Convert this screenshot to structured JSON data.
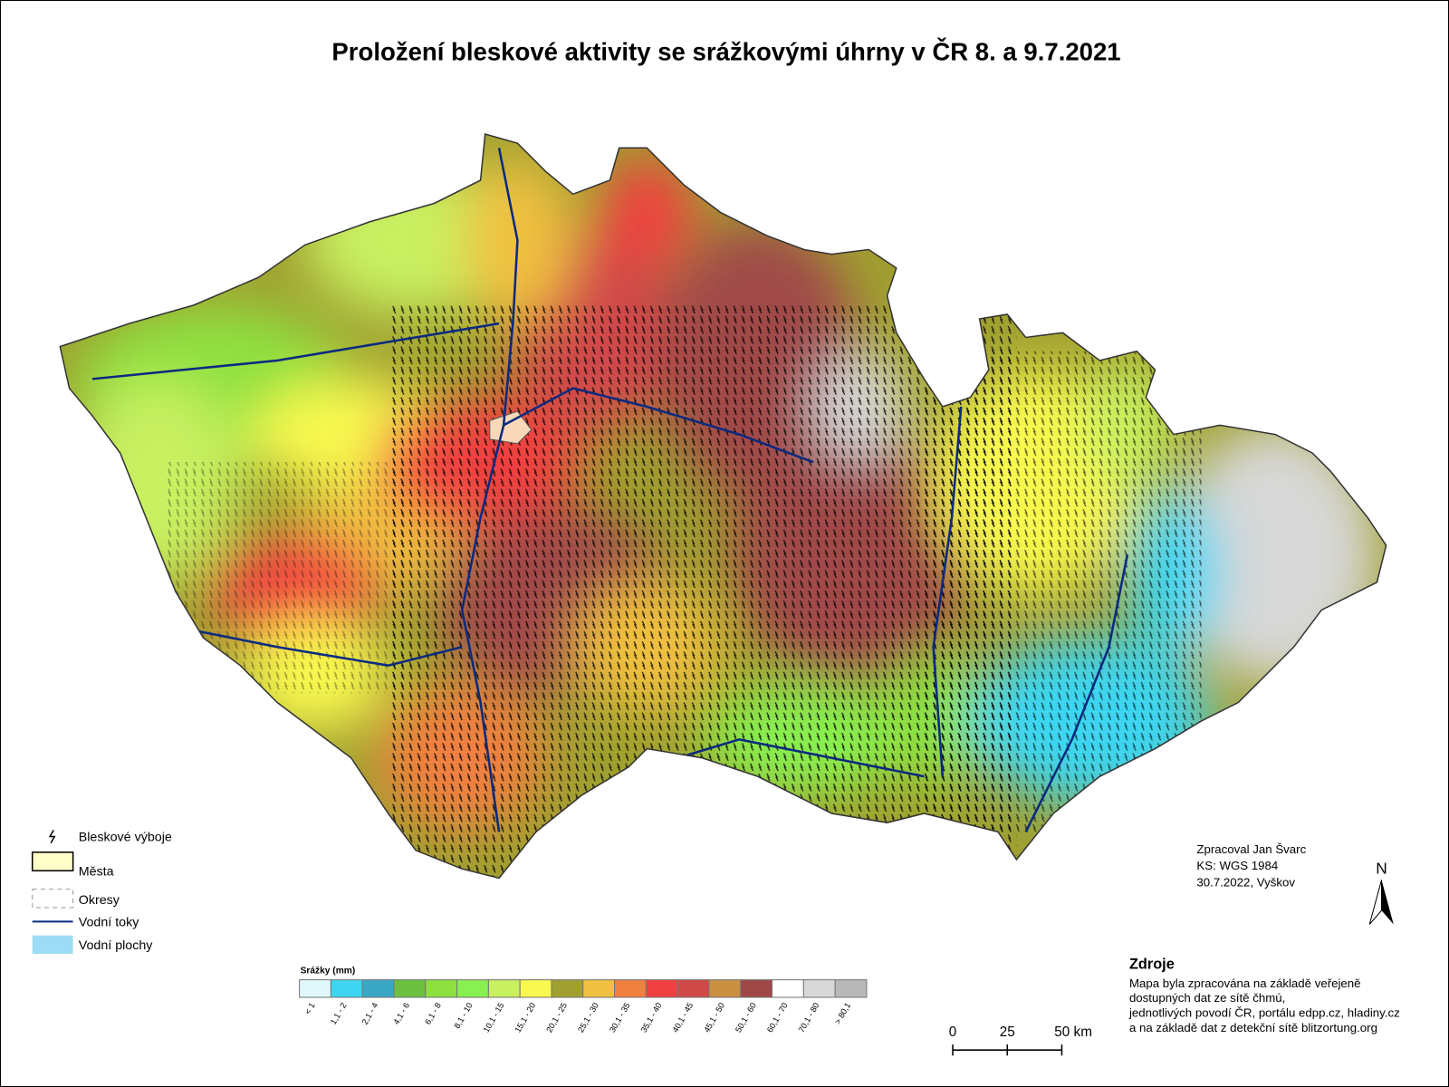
{
  "title": "Proložení bleskové aktivity se srážkovými úhrny v ČR 8. a 9.7.2021",
  "legend": {
    "items": [
      "Bleskové výboje",
      "Města",
      "Okresy",
      "Vodní toky",
      "Vodní plochy"
    ]
  },
  "colorbar": {
    "title": "Srážky (mm)",
    "classes": [
      {
        "label": "< 1",
        "color": "#e0f8fc"
      },
      {
        "label": "1,1 - 2",
        "color": "#3dd5f0"
      },
      {
        "label": "2,1 - 4",
        "color": "#3aa8c4"
      },
      {
        "label": "4,1 - 6",
        "color": "#6cc040"
      },
      {
        "label": "6,1 - 8",
        "color": "#8ee040"
      },
      {
        "label": "8,1 - 10",
        "color": "#88f050"
      },
      {
        "label": "10,1 - 15",
        "color": "#c8f060"
      },
      {
        "label": "15,1 - 20",
        "color": "#f8f850"
      },
      {
        "label": "20,1 - 25",
        "color": "#a0a030"
      },
      {
        "label": "25,1 - 30",
        "color": "#f0c040"
      },
      {
        "label": "30,1 - 35",
        "color": "#f08040"
      },
      {
        "label": "35,1 - 40",
        "color": "#f04040"
      },
      {
        "label": "40,1 - 45",
        "color": "#d04848"
      },
      {
        "label": "45,1 - 50",
        "color": "#c89040"
      },
      {
        "label": "50,1 - 60",
        "color": "#a04848"
      },
      {
        "label": "60,1 - 70",
        "color": "#ffffff"
      },
      {
        "label": "70,1 - 80",
        "color": "#d8d8d8"
      },
      {
        "label": "> 80,1",
        "color": "#b8b8b8"
      }
    ]
  },
  "scale_bar": {
    "ticks": [
      0,
      25,
      {
        "value": 50,
        "label": "50 km"
      }
    ]
  },
  "north": "N",
  "credits": [
    "Zpracoval Jan Švarc",
    "KS: WGS 1984",
    "30.7.2022, Vyškov"
  ],
  "sources": {
    "heading": "Zdroje",
    "lines": [
      "Mapa byla zpracována na základě veřejeně",
      "dostupných dat ze sítě čhmú,",
      "jednotlivých povodí ČR, portálu edpp.cz, hladiny.cz",
      "a na základě dat z detekční sítě blitzortung.org"
    ]
  }
}
